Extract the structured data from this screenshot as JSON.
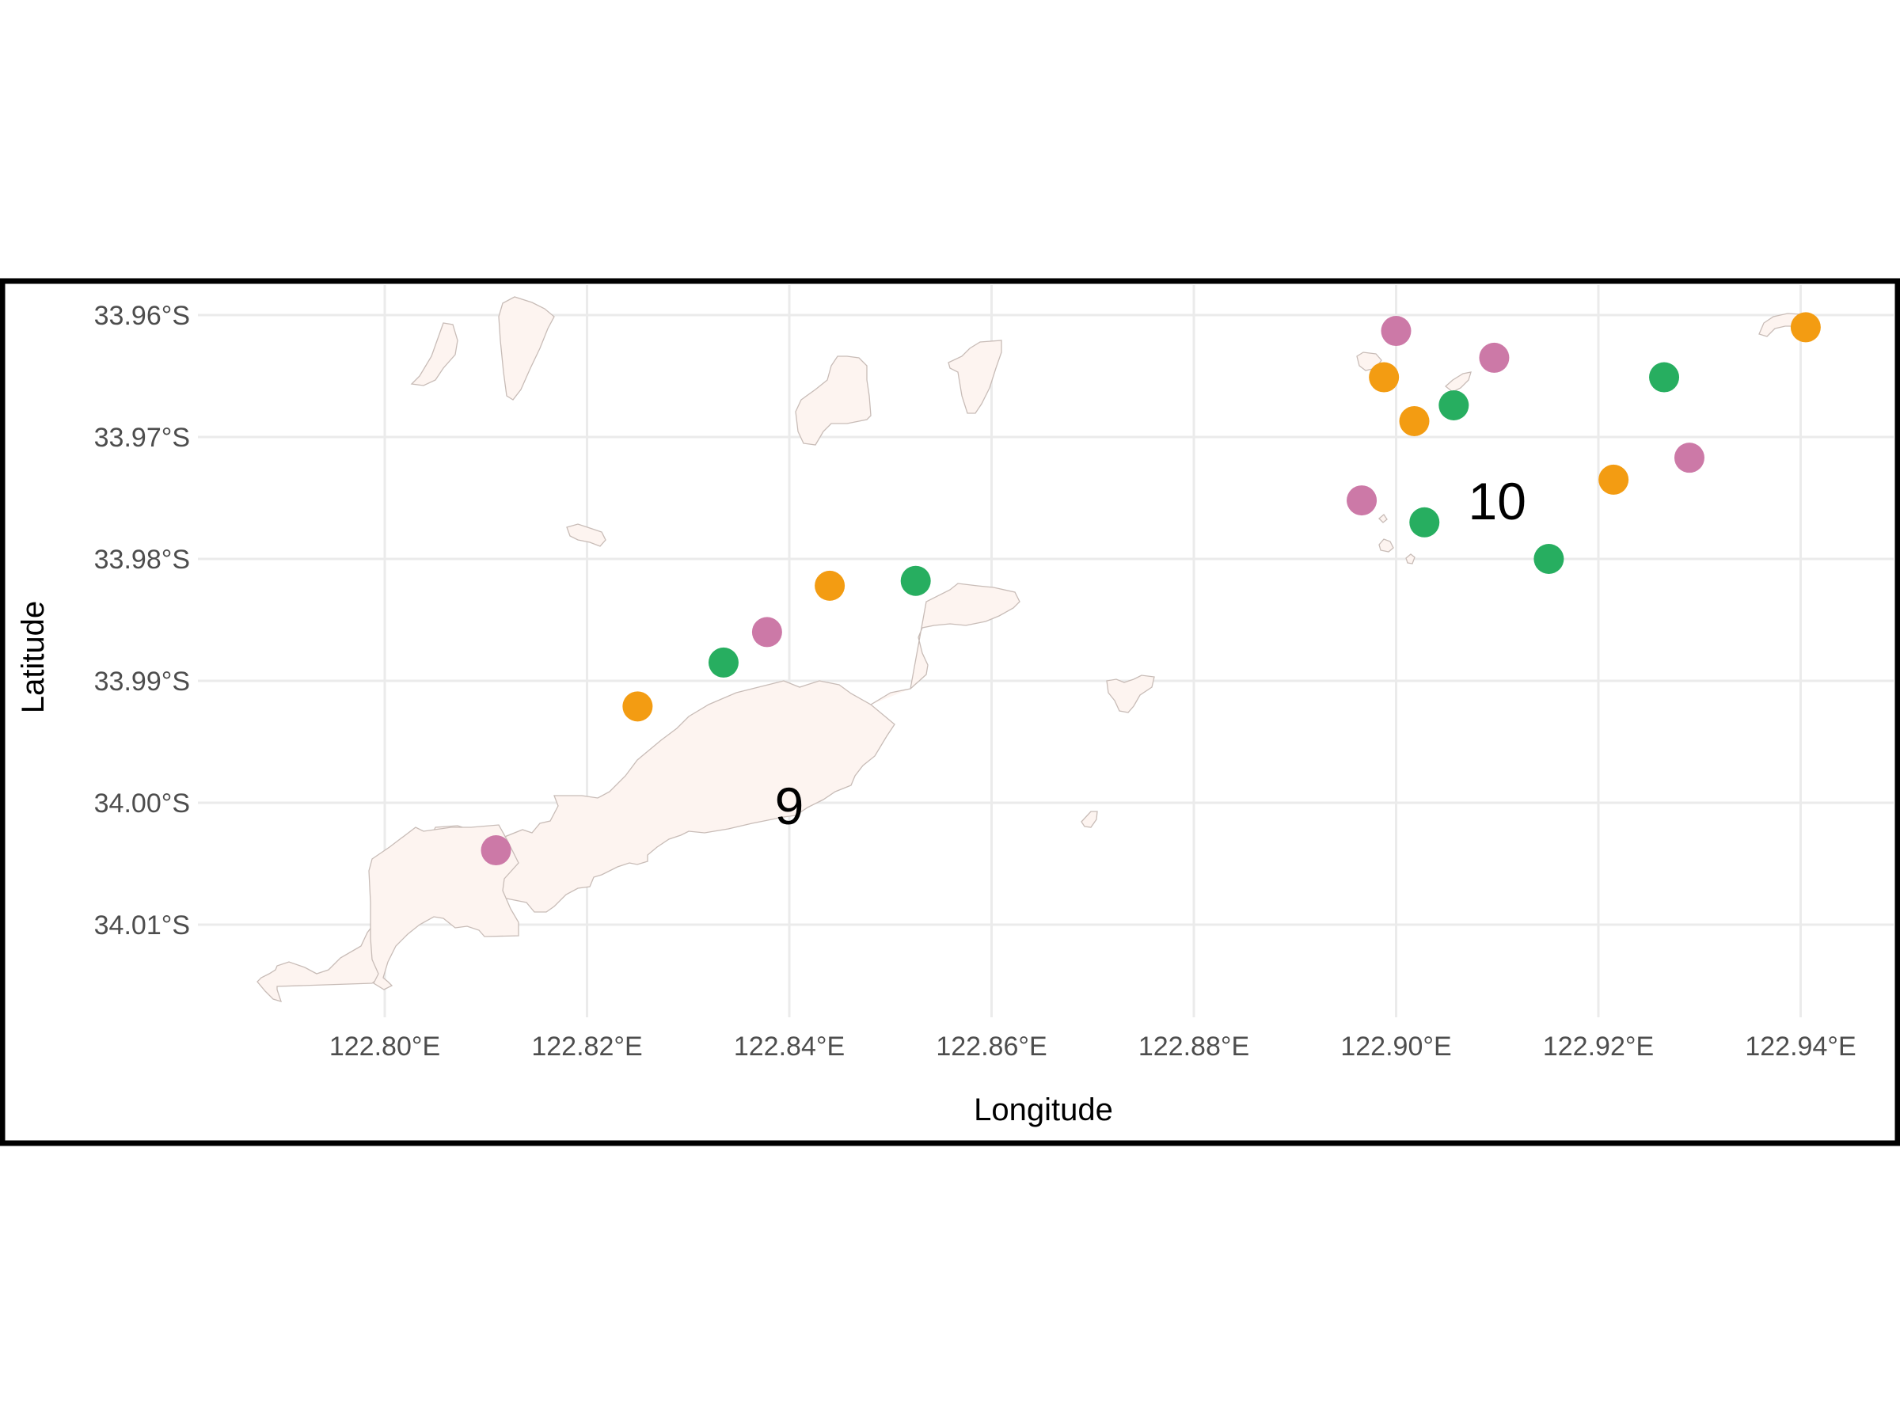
{
  "map": {
    "xlabel": "Longitude",
    "ylabel": "Latitude",
    "x_ticks": [
      "122.80°E",
      "122.82°E",
      "122.84°E",
      "122.86°E",
      "122.88°E",
      "122.90°E",
      "122.92°E",
      "122.94°E"
    ],
    "y_ticks": [
      "33.96°S",
      "33.97°S",
      "33.98°S",
      "33.99°S",
      "34.00°S",
      "34.01°S"
    ],
    "x_tick_values": [
      122.8,
      122.82,
      122.84,
      122.86,
      122.88,
      122.9,
      122.92,
      122.94
    ],
    "y_tick_values": [
      -33.96,
      -33.97,
      -33.98,
      -33.99,
      -34.0,
      -34.01
    ],
    "xlim": [
      122.782,
      122.9505
    ],
    "ylim": [
      -34.0178,
      -33.957
    ],
    "grid": true,
    "point_colors": {
      "orange": "#f39c12",
      "green": "#27ae60",
      "pink": "#cc79a7"
    },
    "group_labels": [
      {
        "text": "9",
        "lon": 122.84,
        "lat": -34.0002
      },
      {
        "text": "10",
        "lon": 122.91,
        "lat": -33.9752
      }
    ],
    "sites": [
      {
        "lon": 122.825,
        "lat": -33.9921,
        "color": "orange"
      },
      {
        "lon": 122.8335,
        "lat": -33.9885,
        "color": "green"
      },
      {
        "lon": 122.8378,
        "lat": -33.986,
        "color": "pink"
      },
      {
        "lon": 122.844,
        "lat": -33.9822,
        "color": "orange"
      },
      {
        "lon": 122.8525,
        "lat": -33.9818,
        "color": "green"
      },
      {
        "lon": 122.811,
        "lat": -34.0039,
        "color": "pink"
      },
      {
        "lon": 122.9,
        "lat": -33.9613,
        "color": "pink"
      },
      {
        "lon": 122.8988,
        "lat": -33.9651,
        "color": "orange"
      },
      {
        "lon": 122.9018,
        "lat": -33.9687,
        "color": "orange"
      },
      {
        "lon": 122.9057,
        "lat": -33.9674,
        "color": "green"
      },
      {
        "lon": 122.9097,
        "lat": -33.9635,
        "color": "pink"
      },
      {
        "lon": 122.8966,
        "lat": -33.9752,
        "color": "pink"
      },
      {
        "lon": 122.9028,
        "lat": -33.977,
        "color": "green"
      },
      {
        "lon": 122.9151,
        "lat": -33.98,
        "color": "green"
      },
      {
        "lon": 122.9215,
        "lat": -33.9735,
        "color": "orange"
      },
      {
        "lon": 122.9265,
        "lat": -33.9651,
        "color": "green"
      },
      {
        "lon": 122.929,
        "lat": -33.9717,
        "color": "pink"
      },
      {
        "lon": 122.9405,
        "lat": -33.961,
        "color": "orange"
      }
    ]
  }
}
